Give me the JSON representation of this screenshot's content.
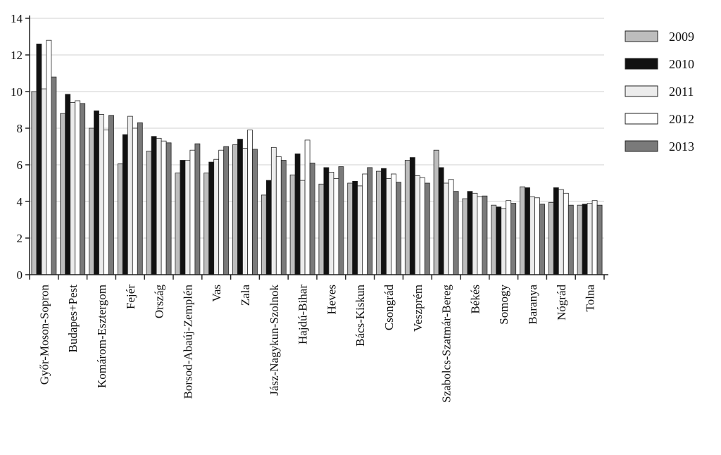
{
  "chart_data": {
    "type": "bar",
    "title": "",
    "xlabel": "",
    "ylabel": "",
    "ylim": [
      0,
      14
    ],
    "yticks": [
      0,
      2,
      4,
      6,
      8,
      10,
      12,
      14
    ],
    "grid": true,
    "legend_position": "right",
    "categories": [
      "Győr-Moson-Sopron",
      "Budapes+Pest",
      "Komárom-Esztergom",
      "Fejér",
      "Ország",
      "Borsod-Abaúj-Zemplén",
      "Vas",
      "Zala",
      "Jász-Nagykun-Szolnok",
      "Hajdú-Bihar",
      "Heves",
      "Bács-Kiskun",
      "Csongrád",
      "Veszprém",
      "Szabolcs-Szatmár-Bereg",
      "Békés",
      "Somogy",
      "Baranya",
      "Nógrád",
      "Tolna"
    ],
    "series": [
      {
        "name": "2009",
        "color": "#bdbdbd",
        "values": [
          10.0,
          8.8,
          8.0,
          6.05,
          6.75,
          5.55,
          5.55,
          7.1,
          4.35,
          5.45,
          4.95,
          5.0,
          5.65,
          6.25,
          6.8,
          4.15,
          3.8,
          4.8,
          3.95,
          3.8
        ]
      },
      {
        "name": "2010",
        "color": "#111111",
        "values": [
          12.6,
          9.85,
          8.95,
          7.65,
          7.55,
          6.25,
          6.15,
          7.4,
          5.15,
          6.6,
          5.85,
          5.1,
          5.8,
          6.4,
          5.85,
          4.55,
          3.7,
          4.75,
          4.75,
          3.85
        ]
      },
      {
        "name": "2011",
        "color": "#ececec",
        "values": [
          10.15,
          9.4,
          8.75,
          8.65,
          7.45,
          6.25,
          6.3,
          6.9,
          6.95,
          5.15,
          5.6,
          4.85,
          5.25,
          5.4,
          5.0,
          4.45,
          3.6,
          4.25,
          4.65,
          3.9
        ]
      },
      {
        "name": "2012",
        "color": "#ffffff",
        "values": [
          12.8,
          9.5,
          7.9,
          8.0,
          7.3,
          6.8,
          6.8,
          7.9,
          6.45,
          7.35,
          5.25,
          5.5,
          5.5,
          5.3,
          5.2,
          4.25,
          4.05,
          4.2,
          4.45,
          4.05
        ]
      },
      {
        "name": "2013",
        "color": "#7a7a7a",
        "values": [
          10.8,
          9.35,
          8.7,
          8.3,
          7.2,
          7.15,
          7.0,
          6.85,
          6.25,
          6.1,
          5.9,
          5.85,
          5.05,
          5.0,
          4.55,
          4.3,
          3.9,
          3.85,
          3.8,
          3.8
        ]
      }
    ]
  }
}
